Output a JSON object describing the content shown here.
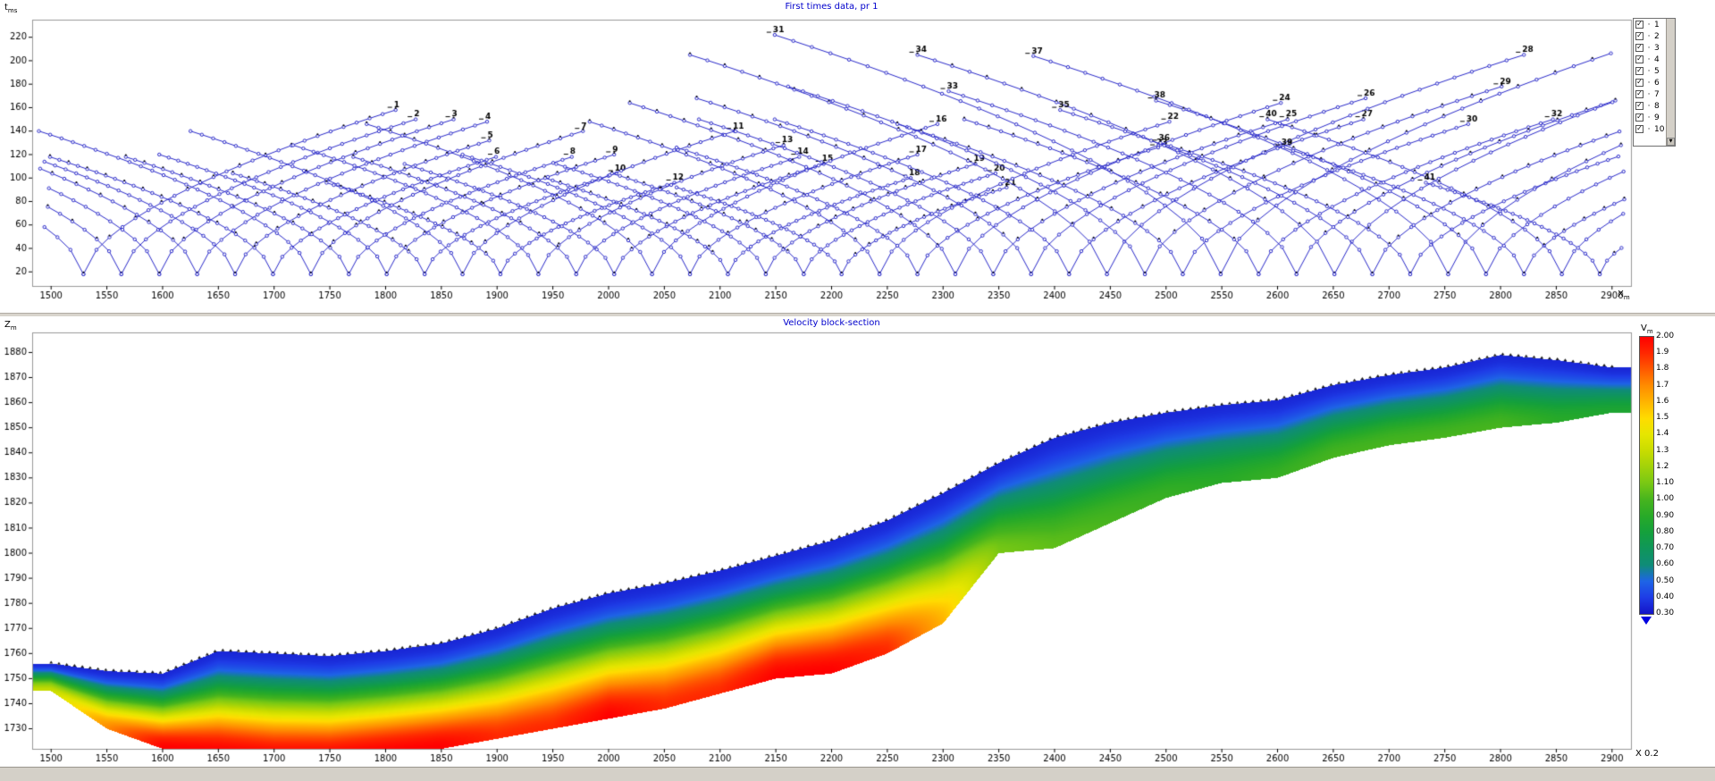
{
  "top_chart": {
    "title": "First times data,  pr 1",
    "y_axis": {
      "main": "t",
      "sub": "ms"
    },
    "x_axis": {
      "main": "X",
      "sub": "m"
    },
    "x_ticks": [
      1500,
      1550,
      1600,
      1650,
      1700,
      1750,
      1800,
      1850,
      1900,
      1950,
      2000,
      2050,
      2100,
      2150,
      2200,
      2250,
      2300,
      2350,
      2400,
      2450,
      2500,
      2550,
      2600,
      2650,
      2700,
      2750,
      2800,
      2850,
      2900
    ],
    "y_ticks": [
      20,
      40,
      60,
      80,
      100,
      120,
      140,
      160,
      180,
      200,
      220
    ],
    "legend_items": [
      "1",
      "2",
      "3",
      "4",
      "5",
      "6",
      "7",
      "8",
      "9",
      "10"
    ],
    "colors": {
      "curve": "#2828c8",
      "marker_fill": "#ffffff",
      "observed": "#000000",
      "title": "#0000cc"
    }
  },
  "bottom_chart": {
    "title": "Velocity block-section",
    "y_axis": {
      "main": "Z",
      "sub": "m"
    },
    "colorbar": {
      "main": "V",
      "sub": "m"
    },
    "x_note": "X  0.2",
    "x_ticks": [
      1500,
      1550,
      1600,
      1650,
      1700,
      1750,
      1800,
      1850,
      1900,
      1950,
      2000,
      2050,
      2100,
      2150,
      2200,
      2250,
      2300,
      2350,
      2400,
      2450,
      2500,
      2550,
      2600,
      2650,
      2700,
      2750,
      2800,
      2850,
      2900
    ],
    "y_ticks": [
      1880,
      1870,
      1860,
      1850,
      1840,
      1830,
      1820,
      1810,
      1800,
      1790,
      1780,
      1770,
      1760,
      1750,
      1740,
      1730
    ],
    "colorbar_ticks": [
      "2.00",
      "1.9",
      "1.8",
      "1.7",
      "1.6",
      "1.5",
      "1.4",
      "1.3",
      "1.2",
      "1.10",
      "1.00",
      "0.90",
      "0.80",
      "0.70",
      "0.60",
      "0.50",
      "0.40",
      "0.30"
    ]
  },
  "icons": {
    "scroll_down": "▼"
  },
  "chart_data": [
    {
      "type": "line",
      "title": "First times data, pr 1",
      "xlabel": "X, m",
      "ylabel": "t, ms",
      "xlim": [
        1483,
        2917
      ],
      "ylim": [
        8,
        235
      ],
      "grid": false,
      "legend_position": "top-right",
      "shots": {
        "t0": 18,
        "x": [
          1529,
          1563,
          1597,
          1631,
          1665,
          1699,
          1733,
          1767,
          1801,
          1835,
          1869,
          1903,
          1937,
          1971,
          2005,
          2039,
          2073,
          2107,
          2141,
          2175,
          2209,
          2243,
          2277,
          2311,
          2345,
          2379,
          2413,
          2447,
          2481,
          2515,
          2549,
          2583,
          2617,
          2651,
          2685,
          2719,
          2753,
          2787,
          2821,
          2855,
          2889
        ],
        "tmax": [
          158,
          150,
          150,
          148,
          132,
          118,
          140,
          118,
          120,
          104,
          140,
          96,
          128,
          118,
          112,
          146,
          120,
          100,
          112,
          104,
          92,
          148,
          126,
          164,
          150,
          168,
          150,
          205,
          178,
          146,
          222,
          150,
          174,
          205,
          158,
          130,
          204,
          166,
          126,
          150,
          96
        ]
      }
    },
    {
      "type": "heatmap",
      "title": "Velocity block-section",
      "xlabel": "X, m",
      "ylabel": "Z, m",
      "colorbar_label": "V, km/s",
      "xlim": [
        1483,
        2917
      ],
      "zlim": [
        1722,
        1888
      ],
      "v_surface": 0.35,
      "x": [
        1500,
        1550,
        1600,
        1650,
        1700,
        1750,
        1800,
        1850,
        1900,
        1950,
        2000,
        2050,
        2100,
        2150,
        2200,
        2250,
        2300,
        2350,
        2400,
        2450,
        2500,
        2550,
        2600,
        2650,
        2700,
        2750,
        2800,
        2850,
        2900
      ],
      "surface_z": [
        1756,
        1753,
        1752,
        1761,
        1760,
        1759,
        1761,
        1764,
        1770,
        1778,
        1784,
        1788,
        1793,
        1799,
        1805,
        1813,
        1824,
        1836,
        1846,
        1852,
        1856,
        1859,
        1861,
        1867,
        1871,
        1874,
        1879,
        1877,
        1874
      ],
      "bottom_z": [
        1745,
        1730,
        1722,
        1720,
        1718,
        1718,
        1720,
        1722,
        1726,
        1730,
        1734,
        1738,
        1744,
        1750,
        1752,
        1760,
        1772,
        1800,
        1802,
        1812,
        1822,
        1828,
        1830,
        1838,
        1843,
        1846,
        1850,
        1852,
        1856
      ],
      "vmax": [
        1.3,
        1.7,
        2.0,
        2.0,
        2.0,
        2.0,
        2.0,
        2.0,
        1.9,
        1.9,
        2.0,
        1.9,
        1.9,
        2.0,
        2.0,
        1.9,
        1.6,
        1.1,
        1.05,
        1.0,
        0.95,
        0.9,
        0.95,
        1.0,
        1.0,
        1.0,
        1.0,
        0.9,
        0.85
      ],
      "colorbar_range": [
        0.3,
        2.0
      ],
      "colormap": [
        [
          0.3,
          "#1414c8"
        ],
        [
          0.4,
          "#1e3ce6"
        ],
        [
          0.5,
          "#1e64e6"
        ],
        [
          0.6,
          "#0f8c78"
        ],
        [
          0.7,
          "#0f965a"
        ],
        [
          0.8,
          "#14a03c"
        ],
        [
          0.9,
          "#28aa28"
        ],
        [
          1.0,
          "#46b41e"
        ],
        [
          1.1,
          "#78c814"
        ],
        [
          1.2,
          "#a0d20a"
        ],
        [
          1.3,
          "#c8dc00"
        ],
        [
          1.4,
          "#e6e600"
        ],
        [
          1.5,
          "#ffdc00"
        ],
        [
          1.6,
          "#ffb400"
        ],
        [
          1.7,
          "#ff8c00"
        ],
        [
          1.8,
          "#ff5a00"
        ],
        [
          1.9,
          "#ff2800"
        ],
        [
          2.0,
          "#ff0000"
        ]
      ]
    }
  ]
}
